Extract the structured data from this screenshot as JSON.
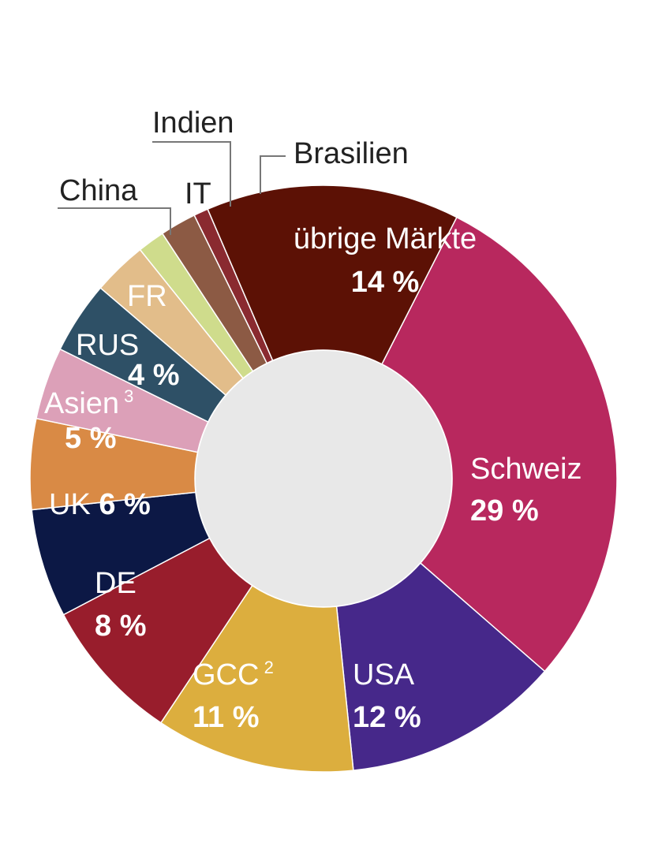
{
  "chart_data": {
    "type": "pie",
    "style": "donut",
    "slices": [
      {
        "label": "Schweiz",
        "value": 29,
        "value_label": "29 %",
        "color": "#b8285e",
        "label_color": "#ffffff"
      },
      {
        "label": "USA",
        "value": 12,
        "value_label": "12 %",
        "color": "#46288a",
        "label_color": "#ffffff"
      },
      {
        "label": "GCC",
        "sup": "2",
        "value": 11,
        "value_label": "11 %",
        "color": "#dcae3e",
        "label_color": "#ffffff"
      },
      {
        "label": "DE",
        "value": 8,
        "value_label": "8 %",
        "color": "#981d2c",
        "label_color": "#ffffff"
      },
      {
        "label": "UK",
        "value": 6,
        "value_label": "6 %",
        "color": "#0c1845",
        "label_color": "#ffffff"
      },
      {
        "label": "Asien",
        "sup": "3",
        "value": 5,
        "value_label": "5 %",
        "color": "#d98a45",
        "label_color": "#ffffff"
      },
      {
        "label": "RUS",
        "value": 4,
        "value_label": "4 %",
        "color": "#dca0b8",
        "label_color": "#ffffff"
      },
      {
        "label": "FR",
        "value": 4,
        "value_label": "",
        "color": "#2e5066",
        "label_color": "#ffffff"
      },
      {
        "label": "China",
        "value": 3,
        "value_label": "",
        "color": "#e2bd8a",
        "label_color": "#222222"
      },
      {
        "label": "IT",
        "value": 1.5,
        "value_label": "",
        "color": "#cfdc8c",
        "label_color": "#222222"
      },
      {
        "label": "Indien",
        "value": 2,
        "value_label": "",
        "color": "#8c5a44",
        "label_color": "#222222"
      },
      {
        "label": "Brasilien",
        "value": 0.8,
        "value_label": "",
        "color": "#8a2a30",
        "label_color": "#222222"
      },
      {
        "label": "übrige Märkte",
        "value": 14,
        "value_label": "14 %",
        "color": "#5c1105",
        "label_color": "#ffffff"
      }
    ],
    "hole_color": "#e8e8e8"
  }
}
